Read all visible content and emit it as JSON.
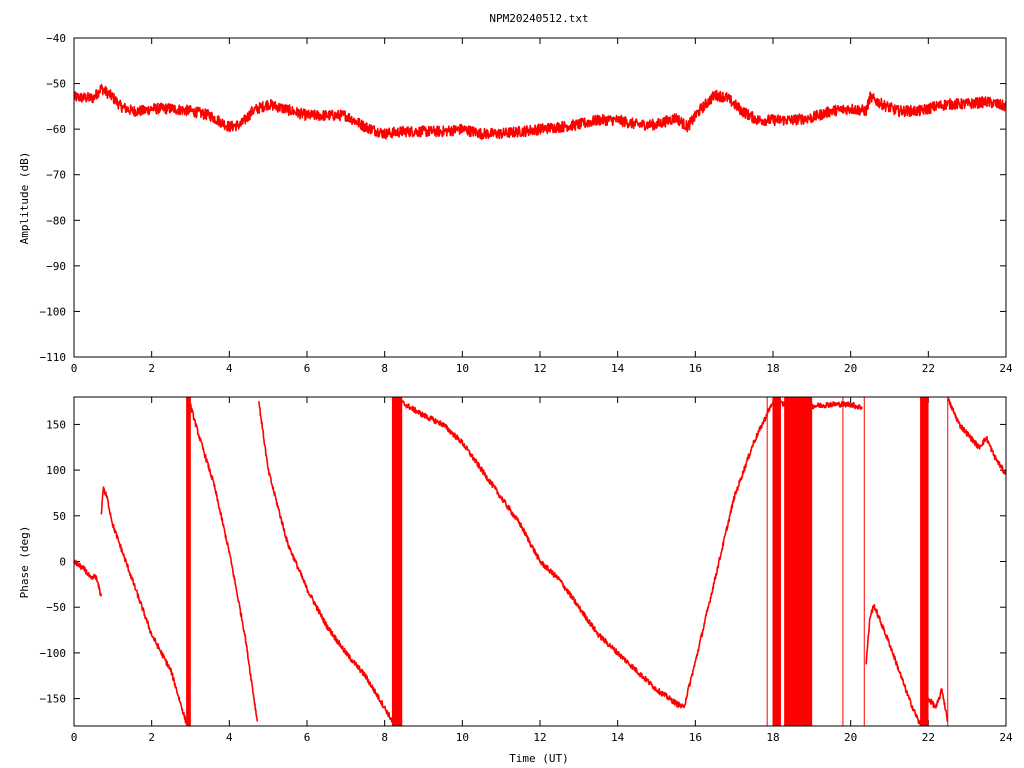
{
  "chart_data": [
    {
      "type": "line",
      "title": "NPM20240512.txt",
      "xlabel": "",
      "ylabel": "Amplitude (dB)",
      "xlim": [
        0,
        24
      ],
      "ylim": [
        -110,
        -40
      ],
      "x_ticks": [
        0,
        2,
        4,
        6,
        8,
        10,
        12,
        14,
        16,
        18,
        20,
        22,
        24
      ],
      "y_ticks": [
        -110,
        -100,
        -90,
        -80,
        -70,
        -60,
        -50,
        -40
      ],
      "series": [
        {
          "color": "#ff0000",
          "noise": 1.2,
          "points": [
            [
              0,
              -53
            ],
            [
              0.5,
              -53.2
            ],
            [
              0.7,
              -51
            ],
            [
              1.0,
              -53
            ],
            [
              1.2,
              -55
            ],
            [
              1.5,
              -56
            ],
            [
              1.8,
              -56
            ],
            [
              2.0,
              -55.5
            ],
            [
              2.5,
              -55.5
            ],
            [
              3.0,
              -56
            ],
            [
              3.5,
              -57
            ],
            [
              4.0,
              -59.5
            ],
            [
              4.3,
              -59
            ],
            [
              4.6,
              -56
            ],
            [
              5.0,
              -54.5
            ],
            [
              5.4,
              -55.5
            ],
            [
              6.0,
              -57
            ],
            [
              6.5,
              -57
            ],
            [
              7.0,
              -57
            ],
            [
              7.5,
              -59.5
            ],
            [
              8.0,
              -61
            ],
            [
              8.5,
              -60.5
            ],
            [
              9.0,
              -60.5
            ],
            [
              9.5,
              -60.5
            ],
            [
              10.0,
              -60
            ],
            [
              10.5,
              -61
            ],
            [
              11.0,
              -61
            ],
            [
              11.5,
              -60.5
            ],
            [
              12.0,
              -60
            ],
            [
              12.5,
              -59.5
            ],
            [
              13.0,
              -59
            ],
            [
              13.5,
              -58
            ],
            [
              14.0,
              -58
            ],
            [
              14.5,
              -59
            ],
            [
              15.0,
              -59
            ],
            [
              15.5,
              -57.5
            ],
            [
              15.8,
              -59.5
            ],
            [
              16.1,
              -56
            ],
            [
              16.5,
              -52.5
            ],
            [
              16.8,
              -53
            ],
            [
              17.2,
              -56
            ],
            [
              17.6,
              -58
            ],
            [
              18.0,
              -58
            ],
            [
              18.5,
              -58
            ],
            [
              19.0,
              -57.5
            ],
            [
              19.5,
              -56
            ],
            [
              20.0,
              -55.5
            ],
            [
              20.4,
              -56
            ],
            [
              20.5,
              -53
            ],
            [
              20.8,
              -54.5
            ],
            [
              21.2,
              -56
            ],
            [
              21.8,
              -56
            ],
            [
              22.2,
              -55
            ],
            [
              22.5,
              -54.5
            ],
            [
              23.0,
              -54.5
            ],
            [
              23.5,
              -54
            ],
            [
              24.0,
              -55
            ]
          ]
        }
      ]
    },
    {
      "type": "line",
      "title": "",
      "xlabel": "Time (UT)",
      "ylabel": "Phase (deg)",
      "xlim": [
        0,
        24
      ],
      "ylim": [
        -180,
        180
      ],
      "x_ticks": [
        0,
        2,
        4,
        6,
        8,
        10,
        12,
        14,
        16,
        18,
        20,
        22,
        24
      ],
      "y_ticks": [
        -150,
        -100,
        -50,
        0,
        50,
        100,
        150
      ],
      "series": [
        {
          "color": "#ff0000",
          "noise": 3,
          "segments": [
            [
              [
                0,
                0
              ],
              [
                0.3,
                -10
              ],
              [
                0.45,
                -20
              ],
              [
                0.55,
                -15
              ],
              [
                0.65,
                -30
              ],
              [
                0.7,
                -38
              ]
            ],
            [
              [
                0.7,
                50
              ],
              [
                0.75,
                80
              ],
              [
                0.85,
                70
              ],
              [
                1.0,
                40
              ],
              [
                1.5,
                -20
              ],
              [
                2.0,
                -80
              ],
              [
                2.5,
                -120
              ],
              [
                2.9,
                -178
              ]
            ],
            [
              [
                2.95,
                178
              ],
              [
                3.2,
                140
              ],
              [
                3.6,
                85
              ],
              [
                4.0,
                10
              ],
              [
                4.4,
                -80
              ],
              [
                4.72,
                -175
              ]
            ],
            [
              [
                4.75,
                178
              ],
              [
                5.0,
                100
              ],
              [
                5.5,
                20
              ],
              [
                6.0,
                -30
              ],
              [
                6.5,
                -70
              ],
              [
                7.0,
                -100
              ],
              [
                7.5,
                -125
              ],
              [
                8.0,
                -160
              ],
              [
                8.2,
                -175
              ]
            ],
            [
              [
                8.4,
                175
              ],
              [
                9.0,
                160
              ],
              [
                9.5,
                150
              ],
              [
                10.0,
                130
              ],
              [
                10.5,
                100
              ],
              [
                11.0,
                70
              ],
              [
                11.5,
                40
              ],
              [
                12.0,
                0
              ],
              [
                12.5,
                -20
              ],
              [
                13.0,
                -50
              ],
              [
                13.5,
                -80
              ],
              [
                14.0,
                -100
              ],
              [
                14.5,
                -120
              ],
              [
                15.0,
                -140
              ],
              [
                15.5,
                -155
              ],
              [
                15.7,
                -160
              ]
            ],
            [
              [
                15.7,
                -160
              ],
              [
                16.0,
                -110
              ],
              [
                16.5,
                -20
              ],
              [
                17.0,
                70
              ],
              [
                17.5,
                130
              ],
              [
                18.0,
                175
              ]
            ],
            [
              [
                18.0,
                175
              ],
              [
                18.5,
                170
              ],
              [
                19.0,
                170
              ],
              [
                19.5,
                172
              ],
              [
                20.0,
                172
              ],
              [
                20.3,
                168
              ]
            ],
            [
              [
                20.4,
                -110
              ],
              [
                20.5,
                -60
              ],
              [
                20.6,
                -48
              ],
              [
                21.0,
                -90
              ],
              [
                21.5,
                -150
              ],
              [
                21.8,
                -180
              ]
            ],
            [
              [
                22.0,
                -150
              ],
              [
                22.2,
                -160
              ],
              [
                22.35,
                -140
              ],
              [
                22.5,
                -175
              ]
            ],
            [
              [
                22.5,
                178
              ],
              [
                22.8,
                150
              ],
              [
                23.0,
                140
              ],
              [
                23.3,
                125
              ],
              [
                23.5,
                135
              ],
              [
                23.7,
                115
              ],
              [
                24.0,
                95
              ]
            ]
          ]
        }
      ],
      "wrap_bursts": [
        [
          2.9,
          3.0
        ],
        [
          8.2,
          8.45
        ],
        [
          18.0,
          18.2
        ],
        [
          18.3,
          19.0
        ],
        [
          21.8,
          22.0
        ]
      ],
      "wrap_lines": [
        17.85,
        19.8,
        20.35,
        22.5
      ]
    }
  ]
}
